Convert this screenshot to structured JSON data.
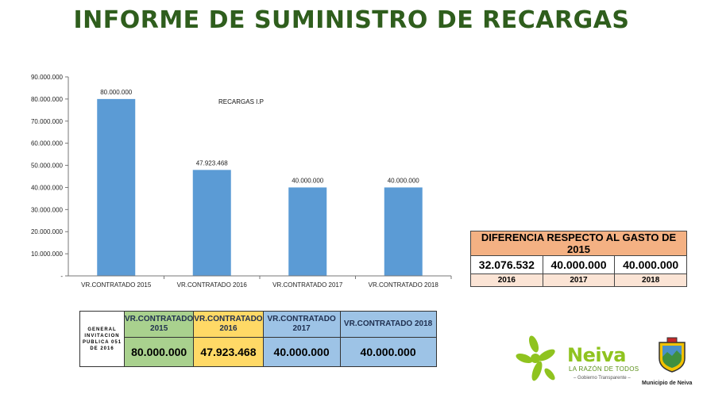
{
  "page": {
    "title": "INFORME DE SUMINISTRO DE RECARGAS"
  },
  "chart_data": {
    "type": "bar",
    "categories": [
      "VR.CONTRATADO  2015",
      "VR.CONTRATADO  2016",
      "VR.CONTRATADO  2017",
      "VR.CONTRATADO  2018"
    ],
    "values": [
      80000000,
      47923468,
      40000000,
      40000000
    ],
    "value_labels": [
      "80.000.000",
      "47.923.468",
      "40.000.000",
      "40.000.000"
    ],
    "annotation": "RECARGAS  I.P",
    "ylim": [
      0,
      90000000
    ],
    "y_ticks": [
      {
        "value": 0,
        "label": "-"
      },
      {
        "value": 10000000,
        "label": "10.000.000"
      },
      {
        "value": 20000000,
        "label": "20.000.000"
      },
      {
        "value": 30000000,
        "label": "30.000.000"
      },
      {
        "value": 40000000,
        "label": "40.000.000"
      },
      {
        "value": 50000000,
        "label": "50.000.000"
      },
      {
        "value": 60000000,
        "label": "60.000.000"
      },
      {
        "value": 70000000,
        "label": "70.000.000"
      },
      {
        "value": 80000000,
        "label": "80.000.000"
      },
      {
        "value": 90000000,
        "label": "90.000.000"
      }
    ],
    "bar_color": "#5b9bd5",
    "grid": false
  },
  "diff_table": {
    "title": "DIFERENCIA RESPECTO AL GASTO DE 2015",
    "values": [
      "32.076.532",
      "40.000.000",
      "40.000.000"
    ],
    "years": [
      "2016",
      "2017",
      "2018"
    ],
    "header_color": "#f4b183",
    "year_color": "#fbe4d5"
  },
  "contract_table": {
    "row_label": "GENERAL INVITACION PUBLICA 051 DE 2016",
    "headers": [
      {
        "line1": "VR.CONTRATADO",
        "line2": "2015"
      },
      {
        "line1": "VR.CONTRATADO",
        "line2": "2016"
      },
      {
        "line1": "VR.CONTRATADO",
        "line2": "2017"
      },
      {
        "line1": "VR.CONTRATADO 2018",
        "line2": ""
      }
    ],
    "values": [
      "80.000.000",
      "47.923.468",
      "40.000.000",
      "40.000.000"
    ],
    "colors": [
      "#a9d18e",
      "#ffd966",
      "#9dc3e6",
      "#9dc3e6"
    ]
  },
  "logos": {
    "brand": "Neiva",
    "slogan": "LA RAZÓN DE TODOS",
    "tagline": "– Gobierno Transparente –",
    "municipality": "Municipio de Neiva",
    "brand_color": "#8fc31f"
  }
}
